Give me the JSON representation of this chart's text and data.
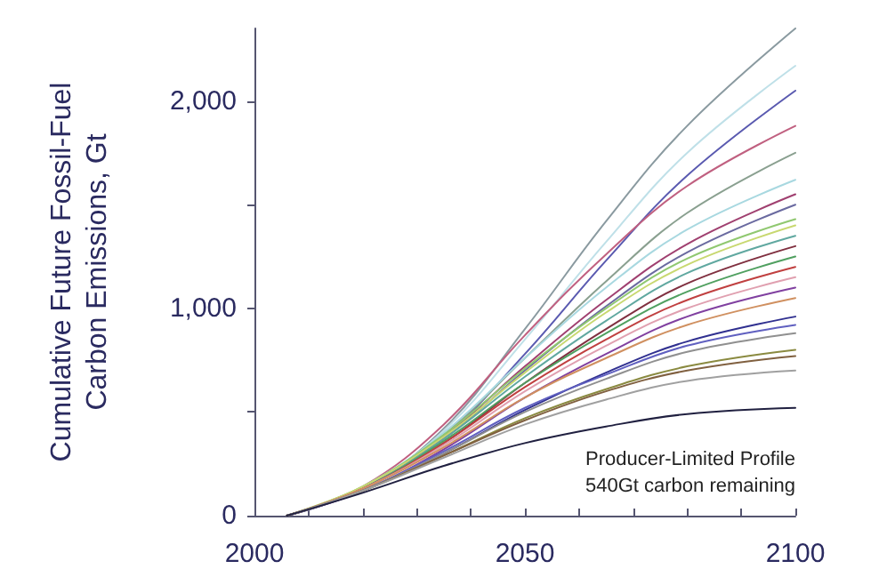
{
  "chart_data": {
    "type": "line",
    "ylabel": "Cumulative Future Fossil-Fuel Carbon Emissions, Gt",
    "annotations": [
      "Producer-Limited Profile",
      "540Gt carbon remaining"
    ],
    "x": [
      2006,
      2020,
      2035,
      2050,
      2065,
      2080,
      2100
    ],
    "xlim": [
      2000,
      2100
    ],
    "xticks": [
      2000,
      {
        "value": 2010,
        "label": null
      },
      {
        "value": 2020,
        "label": null
      },
      {
        "value": 2030,
        "label": null
      },
      {
        "value": 2040,
        "label": null
      },
      2050,
      {
        "value": 2060,
        "label": null
      },
      {
        "value": 2070,
        "label": null
      },
      {
        "value": 2080,
        "label": null
      },
      {
        "value": 2090,
        "label": null
      },
      2100
    ],
    "ylim": [
      0,
      2350
    ],
    "yticks": [
      {
        "value": 0,
        "label": "0"
      },
      {
        "value": 500,
        "label": null
      },
      {
        "value": 1000,
        "label": "1,000"
      },
      {
        "value": 1500,
        "label": null
      },
      {
        "value": 2000,
        "label": "2,000"
      }
    ],
    "grid": false,
    "marker": "none",
    "line_style": "solid",
    "series": [
      {
        "color": "#8a9aa0",
        "values": [
          0,
          130,
          420,
          900,
          1420,
          1880,
          2350
        ]
      },
      {
        "color": "#bfe0e8",
        "values": [
          0,
          130,
          410,
          850,
          1320,
          1750,
          2170
        ]
      },
      {
        "color": "#5a5ab0",
        "values": [
          0,
          130,
          380,
          780,
          1230,
          1640,
          2050
        ]
      },
      {
        "color": "#c06080",
        "values": [
          0,
          140,
          440,
          870,
          1260,
          1590,
          1880
        ]
      },
      {
        "color": "#8aa090",
        "values": [
          0,
          130,
          390,
          760,
          1130,
          1460,
          1750
        ]
      },
      {
        "color": "#a8d8e0",
        "values": [
          0,
          140,
          400,
          760,
          1100,
          1380,
          1620
        ]
      },
      {
        "color": "#a04070",
        "values": [
          0,
          130,
          380,
          720,
          1040,
          1310,
          1550
        ]
      },
      {
        "color": "#6a6aa0",
        "values": [
          0,
          130,
          370,
          700,
          1010,
          1270,
          1500
        ]
      },
      {
        "color": "#90c870",
        "values": [
          0,
          140,
          390,
          710,
          1000,
          1240,
          1430
        ]
      },
      {
        "color": "#c8d870",
        "values": [
          0,
          140,
          380,
          690,
          980,
          1210,
          1400
        ]
      },
      {
        "color": "#60a8a0",
        "values": [
          0,
          130,
          370,
          670,
          940,
          1170,
          1350
        ]
      },
      {
        "color": "#803040",
        "values": [
          0,
          130,
          350,
          640,
          900,
          1120,
          1300
        ]
      },
      {
        "color": "#50a060",
        "values": [
          0,
          130,
          360,
          640,
          880,
          1080,
          1250
        ]
      },
      {
        "color": "#c04040",
        "values": [
          0,
          130,
          350,
          620,
          850,
          1040,
          1200
        ]
      },
      {
        "color": "#e0a0b0",
        "values": [
          0,
          130,
          340,
          600,
          820,
          1000,
          1150
        ]
      },
      {
        "color": "#8040a0",
        "values": [
          0,
          120,
          320,
          570,
          780,
          960,
          1100
        ]
      },
      {
        "color": "#d09060",
        "values": [
          0,
          130,
          330,
          570,
          760,
          920,
          1050
        ]
      },
      {
        "color": "#303090",
        "values": [
          0,
          120,
          300,
          510,
          690,
          840,
          960
        ]
      },
      {
        "color": "#6060c0",
        "values": [
          0,
          120,
          310,
          520,
          680,
          820,
          920
        ]
      },
      {
        "color": "#909090",
        "values": [
          0,
          120,
          300,
          500,
          660,
          790,
          880
        ]
      },
      {
        "color": "#8a8a40",
        "values": [
          0,
          120,
          290,
          470,
          610,
          720,
          800
        ]
      },
      {
        "color": "#806040",
        "values": [
          0,
          120,
          290,
          460,
          600,
          700,
          770
        ]
      },
      {
        "color": "#a0a0a0",
        "values": [
          0,
          120,
          280,
          440,
          560,
          650,
          700
        ]
      },
      {
        "color": "#202040",
        "values": [
          0,
          110,
          240,
          350,
          430,
          490,
          520
        ]
      }
    ]
  }
}
